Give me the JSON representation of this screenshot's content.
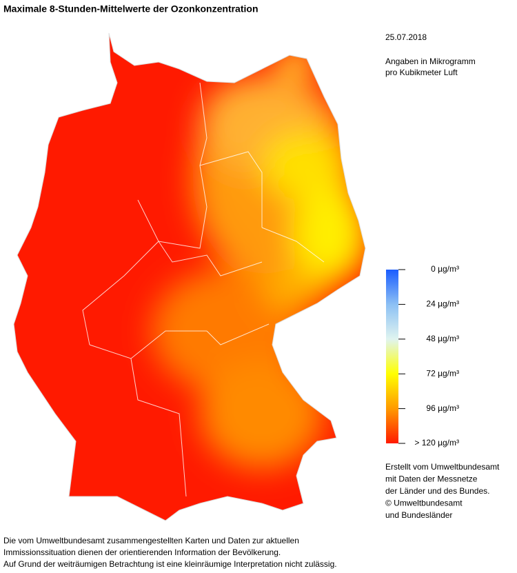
{
  "header": {
    "title": "Maximale 8-Stunden-Mittelwerte der Ozonkonzentration"
  },
  "info": {
    "date": "25.07.2018",
    "unit_lines": [
      "Angaben in Mikrogramm",
      "pro Kubikmeter Luft"
    ]
  },
  "legend": {
    "ticks": [
      {
        "value": 0,
        "label": "0 µg/m³"
      },
      {
        "value": 24,
        "label": "24 µg/m³"
      },
      {
        "value": 48,
        "label": "48 µg/m³"
      },
      {
        "value": 72,
        "label": "72 µg/m³"
      },
      {
        "value": 96,
        "label": "96 µg/m³"
      },
      {
        "value": 120,
        "label": "> 120 µg/m³"
      }
    ]
  },
  "credits": [
    "Erstellt vom Umweltbundesamt",
    "mit Daten der Messnetze",
    "der Länder und des Bundes.",
    "© Umweltbundesamt",
    "und Bundesländer"
  ],
  "footer": [
    "Die vom Umweltbundesamt zusammengestellten Karten und Daten zur aktuellen",
    "Immissionssituation dienen der orientierenden Information der Bevölkerung.",
    "Auf Grund der weiträumigen Betrachtung ist eine kleinräumige Interpretation nicht zulässig."
  ]
}
